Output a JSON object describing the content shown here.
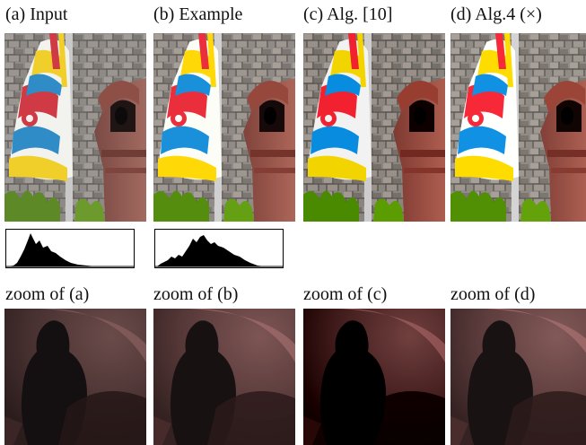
{
  "columns": [
    {
      "label": "(a) Input",
      "zoom_label": "zoom of (a)",
      "variant": "input"
    },
    {
      "label": "(b) Example",
      "zoom_label": "zoom of (b)",
      "variant": "example"
    },
    {
      "label": "(c) Alg. [10]",
      "zoom_label": "zoom of (c)",
      "variant": "alg10"
    },
    {
      "label": "(d) Alg.4 (×)",
      "zoom_label": "zoom of (d)",
      "variant": "alg4"
    }
  ],
  "histograms": [
    {
      "of": "(a) Input"
    },
    {
      "of": "(b) Example"
    }
  ]
}
